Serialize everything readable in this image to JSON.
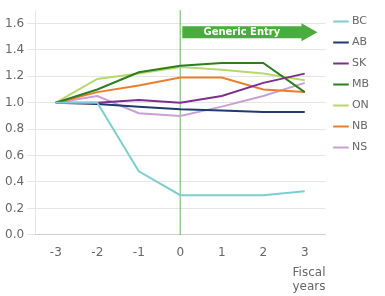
{
  "chart_data": {
    "type": "line",
    "x": [
      -3,
      -2,
      -1,
      0,
      1,
      2,
      3
    ],
    "series": [
      {
        "name": "BC",
        "color": "#7ecece",
        "values": [
          1.0,
          1.0,
          0.48,
          0.3,
          0.3,
          0.3,
          0.33
        ]
      },
      {
        "name": "AB",
        "color": "#1f3b6e",
        "values": [
          1.0,
          0.99,
          0.97,
          0.95,
          0.94,
          0.93,
          0.93
        ]
      },
      {
        "name": "SK",
        "color": "#7b2f8e",
        "values": [
          1.0,
          1.0,
          1.02,
          1.0,
          1.05,
          1.15,
          1.22
        ]
      },
      {
        "name": "MB",
        "color": "#2e7d1e",
        "values": [
          1.0,
          1.1,
          1.23,
          1.28,
          1.3,
          1.3,
          1.08
        ]
      },
      {
        "name": "ON",
        "color": "#b5d96b",
        "values": [
          1.0,
          1.18,
          1.22,
          1.27,
          1.25,
          1.22,
          1.17
        ]
      },
      {
        "name": "NB",
        "color": "#e87e2e",
        "values": [
          1.0,
          1.08,
          1.13,
          1.19,
          1.19,
          1.1,
          1.08
        ]
      },
      {
        "name": "NS",
        "color": "#c9a0d4",
        "values": [
          1.0,
          1.05,
          0.92,
          0.9,
          0.97,
          1.05,
          1.15
        ]
      }
    ],
    "xlabel": "Fiscal\nyears",
    "xlim": [
      -3.5,
      3.5
    ],
    "xticks": [
      -3,
      -2,
      -1,
      0,
      1,
      2,
      3
    ],
    "ylim": [
      0,
      1.7
    ],
    "yticks": [
      {
        "value": 0,
        "label": "0.0"
      },
      0.2,
      0.4,
      0.6,
      0.8,
      {
        "value": 1,
        "label": "1.0"
      },
      1.2,
      1.4,
      1.6
    ],
    "grid": "y",
    "legend": "right",
    "annotations": [
      {
        "text": "Generic Entry",
        "color": "#4aab3e"
      }
    ]
  }
}
